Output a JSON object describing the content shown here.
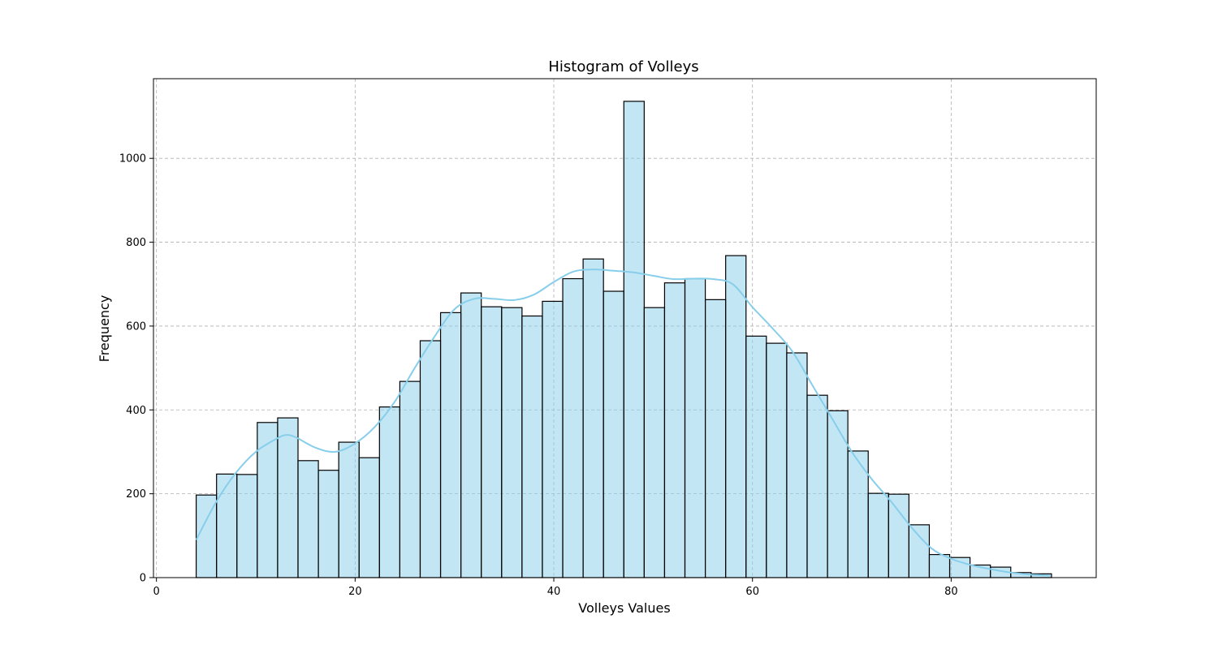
{
  "chart_data": {
    "type": "bar",
    "title": "Histogram of Volleys",
    "xlabel": "Volleys Values",
    "ylabel": "Frequency",
    "xlim": [
      -0.3,
      94.6
    ],
    "ylim": [
      0,
      1190
    ],
    "x_ticks": [
      0,
      20,
      40,
      60,
      80
    ],
    "y_ticks": [
      0,
      200,
      400,
      600,
      800,
      1000
    ],
    "grid": true,
    "bin_start": 4,
    "bin_width": 2.05,
    "values": [
      197,
      247,
      246,
      370,
      381,
      279,
      256,
      323,
      286,
      407,
      468,
      565,
      632,
      679,
      646,
      644,
      624,
      659,
      713,
      760,
      683,
      1136,
      644,
      703,
      713,
      663,
      768,
      576,
      559,
      536,
      435,
      398,
      302,
      201,
      199,
      126,
      55,
      48,
      30,
      25,
      12,
      9
    ],
    "kde": {
      "x": [
        4,
        6,
        8,
        10,
        12,
        13,
        14,
        16,
        18,
        20,
        22,
        24,
        26,
        28,
        30,
        32,
        34,
        36,
        38,
        40,
        42,
        44,
        46,
        48,
        50,
        52,
        54,
        56,
        58,
        60,
        62,
        64,
        66,
        68,
        70,
        72,
        74,
        76,
        78,
        80,
        82,
        84,
        86,
        88,
        90
      ],
      "y": [
        90,
        180,
        250,
        300,
        330,
        340,
        335,
        310,
        300,
        320,
        360,
        420,
        500,
        575,
        640,
        665,
        665,
        662,
        675,
        705,
        730,
        735,
        732,
        728,
        720,
        712,
        713,
        712,
        700,
        645,
        595,
        540,
        460,
        380,
        300,
        235,
        180,
        120,
        70,
        45,
        30,
        20,
        12,
        7,
        5
      ]
    },
    "colors": {
      "bar_fill": "#87CEEB",
      "bar_edge": "#000000",
      "kde_line": "#87CEEB",
      "grid": "#b0b0b0"
    }
  }
}
